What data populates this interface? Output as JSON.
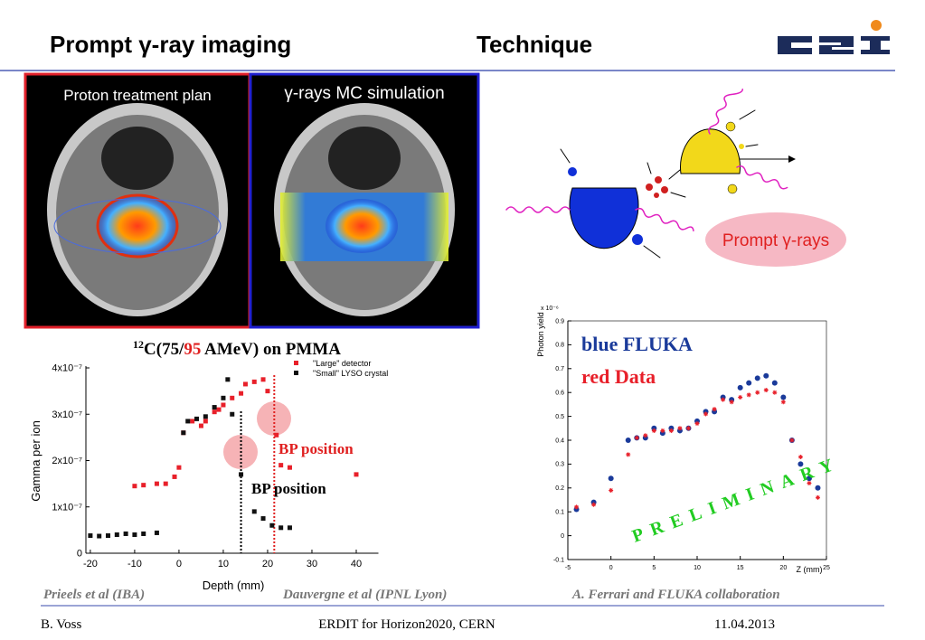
{
  "header": {
    "title": "Prompt γ-ray imaging",
    "topic": "Technique"
  },
  "panels": [
    "Proton treatment plan",
    "γ-rays MC simulation"
  ],
  "diagram": {
    "label": "Prompt γ-rays"
  },
  "chart_data": [
    {
      "type": "scatter",
      "title": [
        "12",
        "C(75/",
        "95",
        " AMeV) on PMMA"
      ],
      "xlabel": "Depth (mm)",
      "ylabel": "Gamma per ion",
      "xlim": [
        -21,
        45
      ],
      "ylim": [
        0,
        4e-07
      ],
      "xticks": [
        -20,
        -10,
        0,
        10,
        20,
        30,
        40
      ],
      "yticks": [
        0,
        {
          "value": 1e-07,
          "label": "1x10⁻⁷"
        },
        {
          "value": 2e-07,
          "label": "2x10⁻⁷"
        },
        {
          "value": 3e-07,
          "label": "3x10⁻⁷"
        },
        {
          "value": 4e-07,
          "label": "4x10⁻⁷"
        }
      ],
      "series": [
        {
          "name": "\"Large\" detector",
          "color": "#e8202a",
          "x": [
            -10,
            -8,
            -5,
            -3,
            -1,
            0,
            1,
            3,
            5,
            6,
            8,
            9,
            10,
            12,
            14,
            15,
            17,
            19,
            20,
            22,
            23,
            25,
            40
          ],
          "values": [
            1.45e-07,
            1.47e-07,
            1.5e-07,
            1.5e-07,
            1.65e-07,
            1.85e-07,
            2.6e-07,
            2.85e-07,
            2.75e-07,
            2.85e-07,
            3.05e-07,
            3.1e-07,
            3.2e-07,
            3.35e-07,
            3.45e-07,
            3.65e-07,
            3.7e-07,
            3.75e-07,
            3.5e-07,
            2.55e-07,
            1.9e-07,
            1.85e-07,
            1.7e-07
          ]
        },
        {
          "name": "\"Small\" LYSO crystal",
          "color": "#111111",
          "x": [
            -20,
            -18,
            -16,
            -14,
            -12,
            -10,
            -8,
            -5,
            1,
            2,
            4,
            6,
            8,
            10,
            11,
            12,
            14,
            17,
            19,
            21,
            23,
            25
          ],
          "values": [
            3.8e-08,
            3.7e-08,
            3.8e-08,
            4e-08,
            4.2e-08,
            4e-08,
            4.2e-08,
            4.4e-08,
            2.6e-07,
            2.85e-07,
            2.9e-07,
            2.95e-07,
            3.15e-07,
            3.35e-07,
            3.75e-07,
            3e-07,
            1.7e-07,
            9e-08,
            7.5e-08,
            6e-08,
            5.5e-08,
            5.5e-08
          ]
        }
      ],
      "annotations": [
        {
          "text": "BP position",
          "x": 21.5,
          "color": "#e02020"
        },
        {
          "text": "BP position",
          "x": 14,
          "color": "#000000"
        }
      ]
    },
    {
      "type": "scatter",
      "xlabel": "Z (mm)",
      "ylabel": "Photon yield",
      "axis_note": "x 10⁻⁶",
      "stamp": "PRELIMINARY",
      "xlim": [
        -5,
        25
      ],
      "ylim": [
        -0.1,
        0.9
      ],
      "xticks": [
        -5,
        0,
        5,
        10,
        15,
        20,
        25
      ],
      "yticks": [
        -0.1,
        0,
        0.1,
        0.2,
        0.3,
        0.4,
        0.5,
        0.6,
        0.7,
        0.8,
        0.9
      ],
      "x": [
        -4,
        -2,
        0,
        2,
        3,
        4,
        5,
        6,
        7,
        8,
        9,
        10,
        11,
        12,
        13,
        14,
        15,
        16,
        17,
        18,
        19,
        20,
        21,
        22,
        23,
        24
      ],
      "series": [
        {
          "name": "blue FLUKA",
          "color": "#1a3a9a",
          "marker": "circle",
          "values": [
            0.11,
            0.14,
            0.24,
            0.4,
            0.41,
            0.41,
            0.45,
            0.43,
            0.45,
            0.44,
            0.45,
            0.48,
            0.52,
            0.52,
            0.58,
            0.57,
            0.62,
            0.64,
            0.66,
            0.67,
            0.64,
            0.58,
            0.4,
            0.3,
            0.24,
            0.2
          ]
        },
        {
          "name": "red Data",
          "color": "#e8202a",
          "marker": "star",
          "values": [
            0.12,
            0.13,
            0.19,
            0.34,
            0.41,
            0.42,
            0.44,
            0.44,
            0.44,
            0.45,
            0.45,
            0.47,
            0.51,
            0.53,
            0.57,
            0.56,
            0.58,
            0.59,
            0.6,
            0.61,
            0.6,
            0.56,
            0.4,
            0.33,
            0.22,
            0.16
          ]
        }
      ]
    }
  ],
  "credits": [
    "Prieels et al (IBA)",
    "Dauvergne et al (IPNL Lyon)",
    "A. Ferrari and FLUKA collaboration"
  ],
  "footer": {
    "author": "B. Voss",
    "event": "ERDIT for Horizon2020, CERN",
    "date": "11.04.2013"
  }
}
